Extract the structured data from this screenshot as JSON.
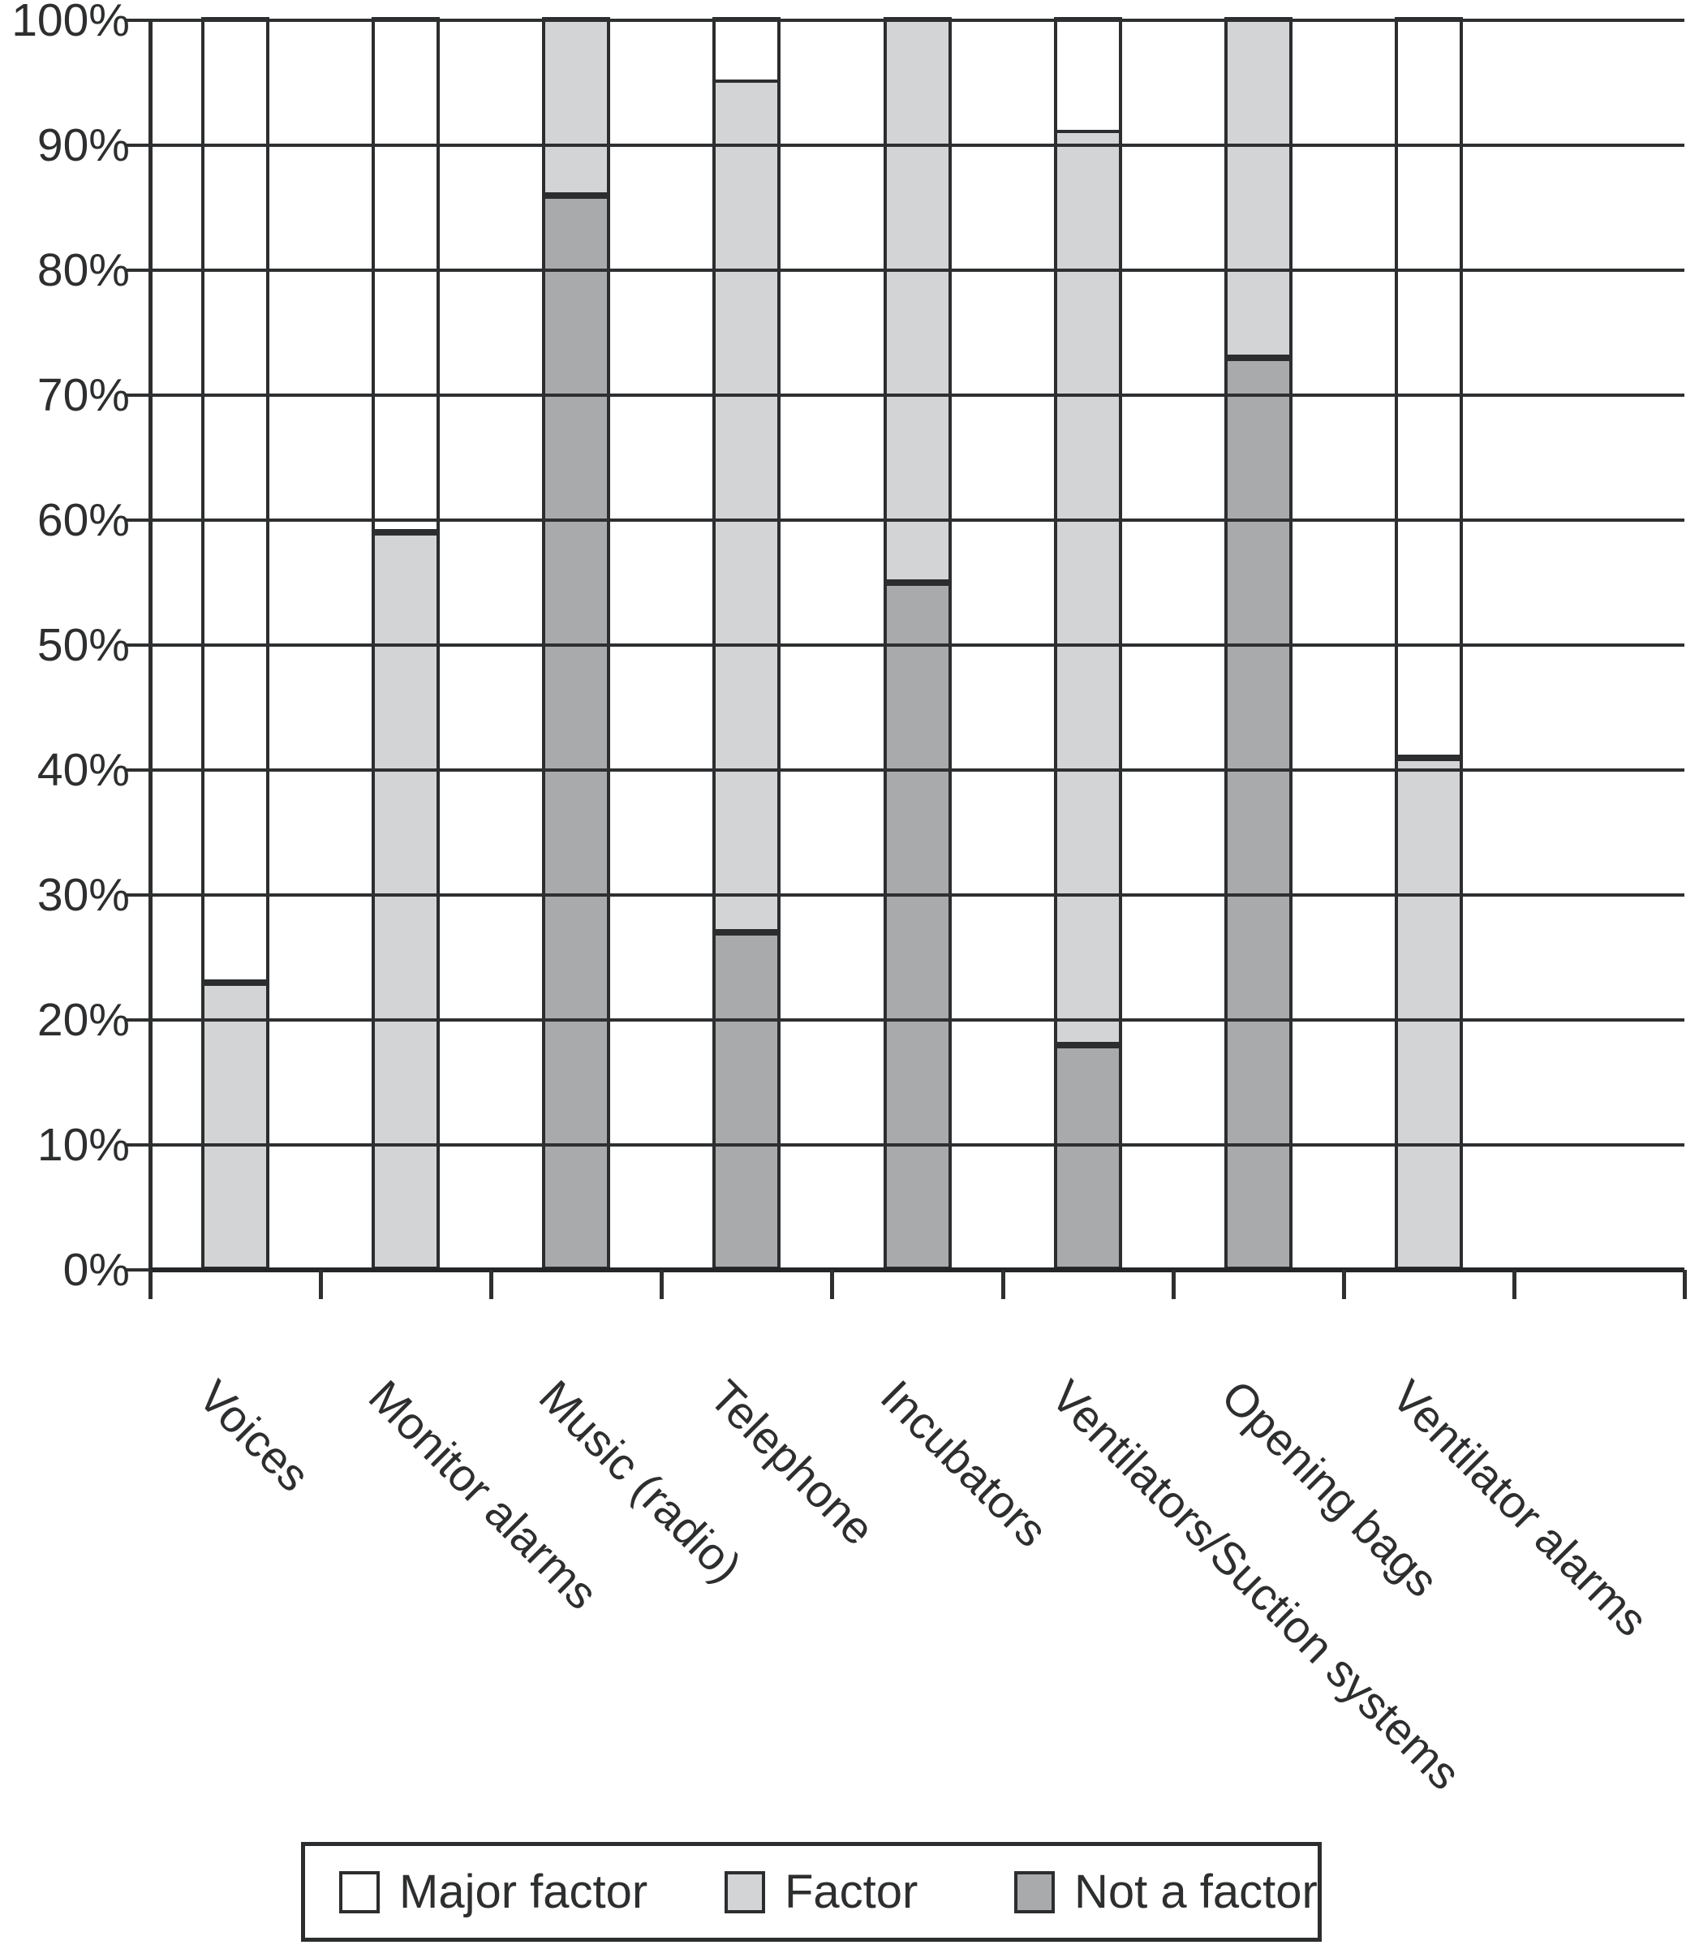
{
  "chart_data": {
    "type": "bar",
    "subtype": "stacked-percent-column",
    "title": "",
    "xlabel": "",
    "ylabel": "",
    "categories": [
      "Voices",
      "Monitor alarms",
      "Music (radio)",
      "Telephone",
      "Incubators",
      "Ventilators/Suction systems",
      "Opening bags",
      "Ventilator alarms"
    ],
    "series": [
      {
        "name": "Major factor",
        "color": "#ffffff",
        "values": [
          77,
          41,
          0,
          5,
          0,
          9,
          0,
          59
        ]
      },
      {
        "name": "Factor",
        "color": "#d3d4d6",
        "values": [
          23,
          59,
          14,
          68,
          45,
          73,
          27,
          41
        ]
      },
      {
        "name": "Not a factor",
        "color": "#a9aaac",
        "values": [
          0,
          0,
          86,
          27,
          55,
          18,
          73,
          0
        ]
      }
    ],
    "y_axis": {
      "min": 0,
      "max": 100,
      "step": 10,
      "tick_labels": [
        "100%",
        "90%",
        "80%",
        "70%",
        "60%",
        "50%",
        "40%",
        "30%",
        "20%",
        "10%",
        "0%"
      ]
    },
    "grid": "horizontal",
    "legend_position": "bottom",
    "empty_trailing_slots": 1
  },
  "style": {
    "line_color": "#2e2f30",
    "background": "#ffffff"
  }
}
